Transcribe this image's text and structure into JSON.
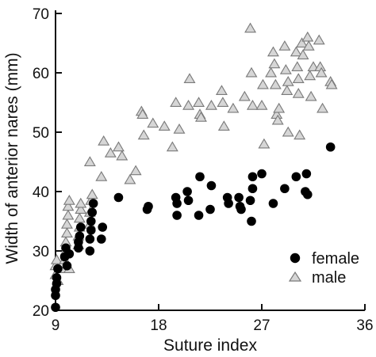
{
  "chart_data": {
    "type": "scatter",
    "title": "",
    "xlabel": "Suture index",
    "ylabel": "Width of anterior nares (mm)",
    "xlim": [
      9,
      36
    ],
    "ylim": [
      20,
      70
    ],
    "xticks": [
      "9",
      "18",
      "27",
      "36"
    ],
    "yticks": [
      "20",
      "30",
      "40",
      "50",
      "60",
      "70"
    ],
    "grid": false,
    "legend_position": "bottom-right",
    "series": [
      {
        "name": "female",
        "marker": "filled-circle",
        "color": "#000000",
        "points": [
          [
            9.0,
            20.5
          ],
          [
            9.0,
            22.5
          ],
          [
            9.0,
            23.5
          ],
          [
            9.1,
            24.5
          ],
          [
            9.1,
            25.5
          ],
          [
            9.2,
            27.0
          ],
          [
            9.8,
            29.0
          ],
          [
            9.9,
            30.5
          ],
          [
            10.0,
            27.5
          ],
          [
            10.2,
            29.5
          ],
          [
            11.0,
            30.5
          ],
          [
            11.0,
            31.5
          ],
          [
            11.1,
            32.5
          ],
          [
            11.2,
            34.0
          ],
          [
            12.0,
            30.0
          ],
          [
            12.0,
            32.0
          ],
          [
            12.1,
            33.5
          ],
          [
            12.1,
            35.0
          ],
          [
            12.2,
            36.5
          ],
          [
            12.3,
            38.0
          ],
          [
            13.0,
            32.0
          ],
          [
            13.1,
            34.0
          ],
          [
            14.5,
            39.0
          ],
          [
            17.0,
            37.0
          ],
          [
            17.1,
            37.5
          ],
          [
            19.5,
            39.0
          ],
          [
            19.6,
            38.0
          ],
          [
            19.6,
            36.0
          ],
          [
            20.5,
            40.0
          ],
          [
            20.6,
            38.5
          ],
          [
            21.5,
            36.0
          ],
          [
            21.6,
            42.5
          ],
          [
            22.5,
            37.0
          ],
          [
            22.6,
            41.0
          ],
          [
            24.0,
            39.0
          ],
          [
            24.1,
            38.0
          ],
          [
            25.0,
            39.0
          ],
          [
            25.1,
            37.5
          ],
          [
            25.2,
            37.0
          ],
          [
            26.0,
            38.5
          ],
          [
            26.1,
            35.0
          ],
          [
            26.2,
            40.5
          ],
          [
            26.2,
            42.5
          ],
          [
            27.0,
            43.0
          ],
          [
            28.0,
            38.0
          ],
          [
            29.0,
            40.5
          ],
          [
            30.0,
            42.5
          ],
          [
            30.8,
            40.0
          ],
          [
            30.9,
            43.0
          ],
          [
            31.0,
            39.5
          ],
          [
            33.0,
            47.5
          ]
        ]
      },
      {
        "name": "male",
        "marker": "open-triangle",
        "color": "#a8a8a8",
        "points": [
          [
            9.0,
            26.0
          ],
          [
            9.0,
            27.5
          ],
          [
            9.1,
            28.5
          ],
          [
            9.2,
            25.0
          ],
          [
            9.8,
            27.0
          ],
          [
            9.8,
            28.5
          ],
          [
            9.9,
            30.0
          ],
          [
            9.9,
            31.5
          ],
          [
            10.0,
            33.0
          ],
          [
            10.0,
            34.5
          ],
          [
            10.1,
            36.0
          ],
          [
            10.1,
            37.5
          ],
          [
            10.2,
            38.5
          ],
          [
            10.2,
            27.0
          ],
          [
            11.0,
            31.0
          ],
          [
            11.0,
            32.5
          ],
          [
            11.1,
            34.0
          ],
          [
            11.1,
            35.5
          ],
          [
            11.2,
            37.0
          ],
          [
            11.2,
            38.0
          ],
          [
            12.0,
            34.5
          ],
          [
            12.0,
            36.5
          ],
          [
            12.1,
            38.5
          ],
          [
            12.2,
            39.5
          ],
          [
            12.0,
            45.0
          ],
          [
            13.0,
            42.5
          ],
          [
            13.2,
            48.5
          ],
          [
            13.8,
            46.5
          ],
          [
            14.5,
            47.5
          ],
          [
            14.8,
            46.0
          ],
          [
            15.5,
            42.0
          ],
          [
            16.0,
            43.5
          ],
          [
            16.5,
            53.5
          ],
          [
            16.6,
            53.0
          ],
          [
            16.7,
            49.5
          ],
          [
            17.5,
            51.5
          ],
          [
            18.5,
            51.0
          ],
          [
            19.2,
            47.5
          ],
          [
            19.5,
            55.0
          ],
          [
            19.8,
            50.5
          ],
          [
            20.6,
            54.5
          ],
          [
            20.7,
            59.0
          ],
          [
            21.5,
            55.0
          ],
          [
            21.6,
            53.0
          ],
          [
            21.7,
            52.5
          ],
          [
            22.6,
            54.5
          ],
          [
            23.5,
            57.0
          ],
          [
            23.6,
            55.0
          ],
          [
            23.7,
            51.0
          ],
          [
            24.5,
            54.0
          ],
          [
            25.5,
            56.0
          ],
          [
            26.0,
            67.5
          ],
          [
            26.1,
            60.0
          ],
          [
            26.2,
            54.5
          ],
          [
            27.0,
            54.5
          ],
          [
            27.1,
            58.0
          ],
          [
            27.2,
            48.0
          ],
          [
            27.8,
            60.0
          ],
          [
            28.0,
            63.5
          ],
          [
            28.1,
            61.5
          ],
          [
            28.2,
            58.0
          ],
          [
            28.3,
            53.0
          ],
          [
            28.4,
            52.0
          ],
          [
            28.5,
            54.0
          ],
          [
            29.0,
            64.5
          ],
          [
            29.1,
            60.5
          ],
          [
            29.2,
            57.0
          ],
          [
            29.3,
            58.5
          ],
          [
            29.3,
            50.0
          ],
          [
            30.0,
            63.5
          ],
          [
            30.1,
            61.0
          ],
          [
            30.2,
            59.0
          ],
          [
            30.2,
            56.5
          ],
          [
            30.3,
            49.5
          ],
          [
            30.5,
            65.0
          ],
          [
            30.6,
            63.0
          ],
          [
            31.0,
            66.0
          ],
          [
            31.1,
            64.5
          ],
          [
            31.2,
            59.5
          ],
          [
            31.3,
            56.0
          ],
          [
            31.5,
            61.0
          ],
          [
            32.0,
            65.5
          ],
          [
            32.1,
            61.0
          ],
          [
            32.2,
            60.0
          ],
          [
            32.3,
            54.0
          ],
          [
            33.0,
            58.5
          ],
          [
            33.1,
            58.0
          ]
        ]
      }
    ]
  }
}
